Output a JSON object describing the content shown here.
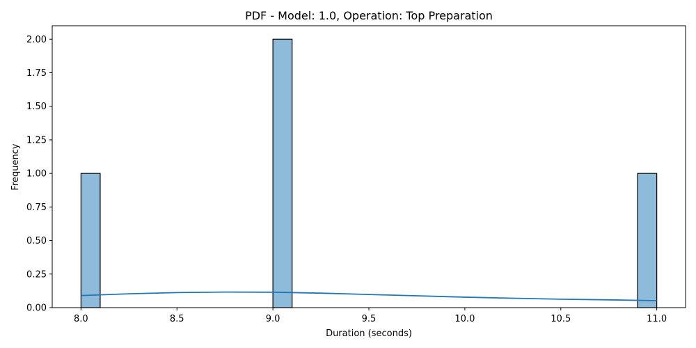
{
  "chart_data": {
    "type": "bar",
    "title": "PDF - Model: 1.0, Operation: Top Preparation",
    "xlabel": "Duration (seconds)",
    "ylabel": "Frequency",
    "xlim": [
      7.85,
      11.15
    ],
    "ylim": [
      0,
      2.1
    ],
    "x_ticks": [
      8.0,
      8.5,
      9.0,
      9.5,
      10.0,
      10.5,
      11.0
    ],
    "x_tick_labels": [
      "8.0",
      "8.5",
      "9.0",
      "9.5",
      "10.0",
      "10.5",
      "11.0"
    ],
    "y_ticks": [
      0,
      0.25,
      0.5,
      0.75,
      1.0,
      1.25,
      1.5,
      1.75,
      2.0
    ],
    "y_tick_labels": [
      "0.00",
      "0.25",
      "0.50",
      "0.75",
      "1.00",
      "1.25",
      "1.50",
      "1.75",
      "2.00"
    ],
    "bins": [
      {
        "x0": 8.0,
        "x1": 8.1,
        "count": 1
      },
      {
        "x0": 9.0,
        "x1": 9.1,
        "count": 2
      },
      {
        "x0": 10.9,
        "x1": 11.0,
        "count": 1
      }
    ],
    "kde": {
      "x": [
        8.0,
        8.25,
        8.5,
        8.75,
        9.0,
        9.25,
        9.5,
        9.75,
        10.0,
        10.25,
        10.5,
        10.75,
        11.0
      ],
      "y": [
        0.09,
        0.103,
        0.112,
        0.116,
        0.115,
        0.108,
        0.098,
        0.088,
        0.078,
        0.07,
        0.063,
        0.058,
        0.052
      ]
    },
    "grid": false,
    "colors": {
      "bar_fill": "#8fbbdb",
      "bar_edge": "#000000",
      "kde_line": "#1f77b4"
    }
  }
}
